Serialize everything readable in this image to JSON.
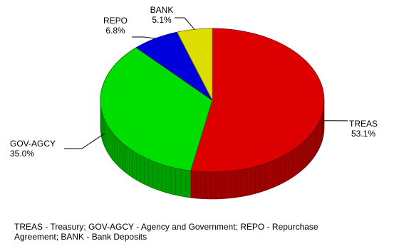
{
  "chart_data": {
    "type": "pie",
    "slices": [
      {
        "label": "TREAS",
        "value": 53.1,
        "value_label": "53.1%",
        "color": "#dd0000"
      },
      {
        "label": "GOV-AGCY",
        "value": 35.0,
        "value_label": "35.0%",
        "color": "#00dd00"
      },
      {
        "label": "REPO",
        "value": 6.8,
        "value_label": "6.8%",
        "color": "#0000dd"
      },
      {
        "label": "BANK",
        "value": 5.1,
        "value_label": "5.1%",
        "color": "#dddd00"
      }
    ]
  },
  "footnote": "TREAS - Treasury; GOV-AGCY - Agency and Government; REPO - Repurchase Agreement; BANK - Bank Deposits"
}
